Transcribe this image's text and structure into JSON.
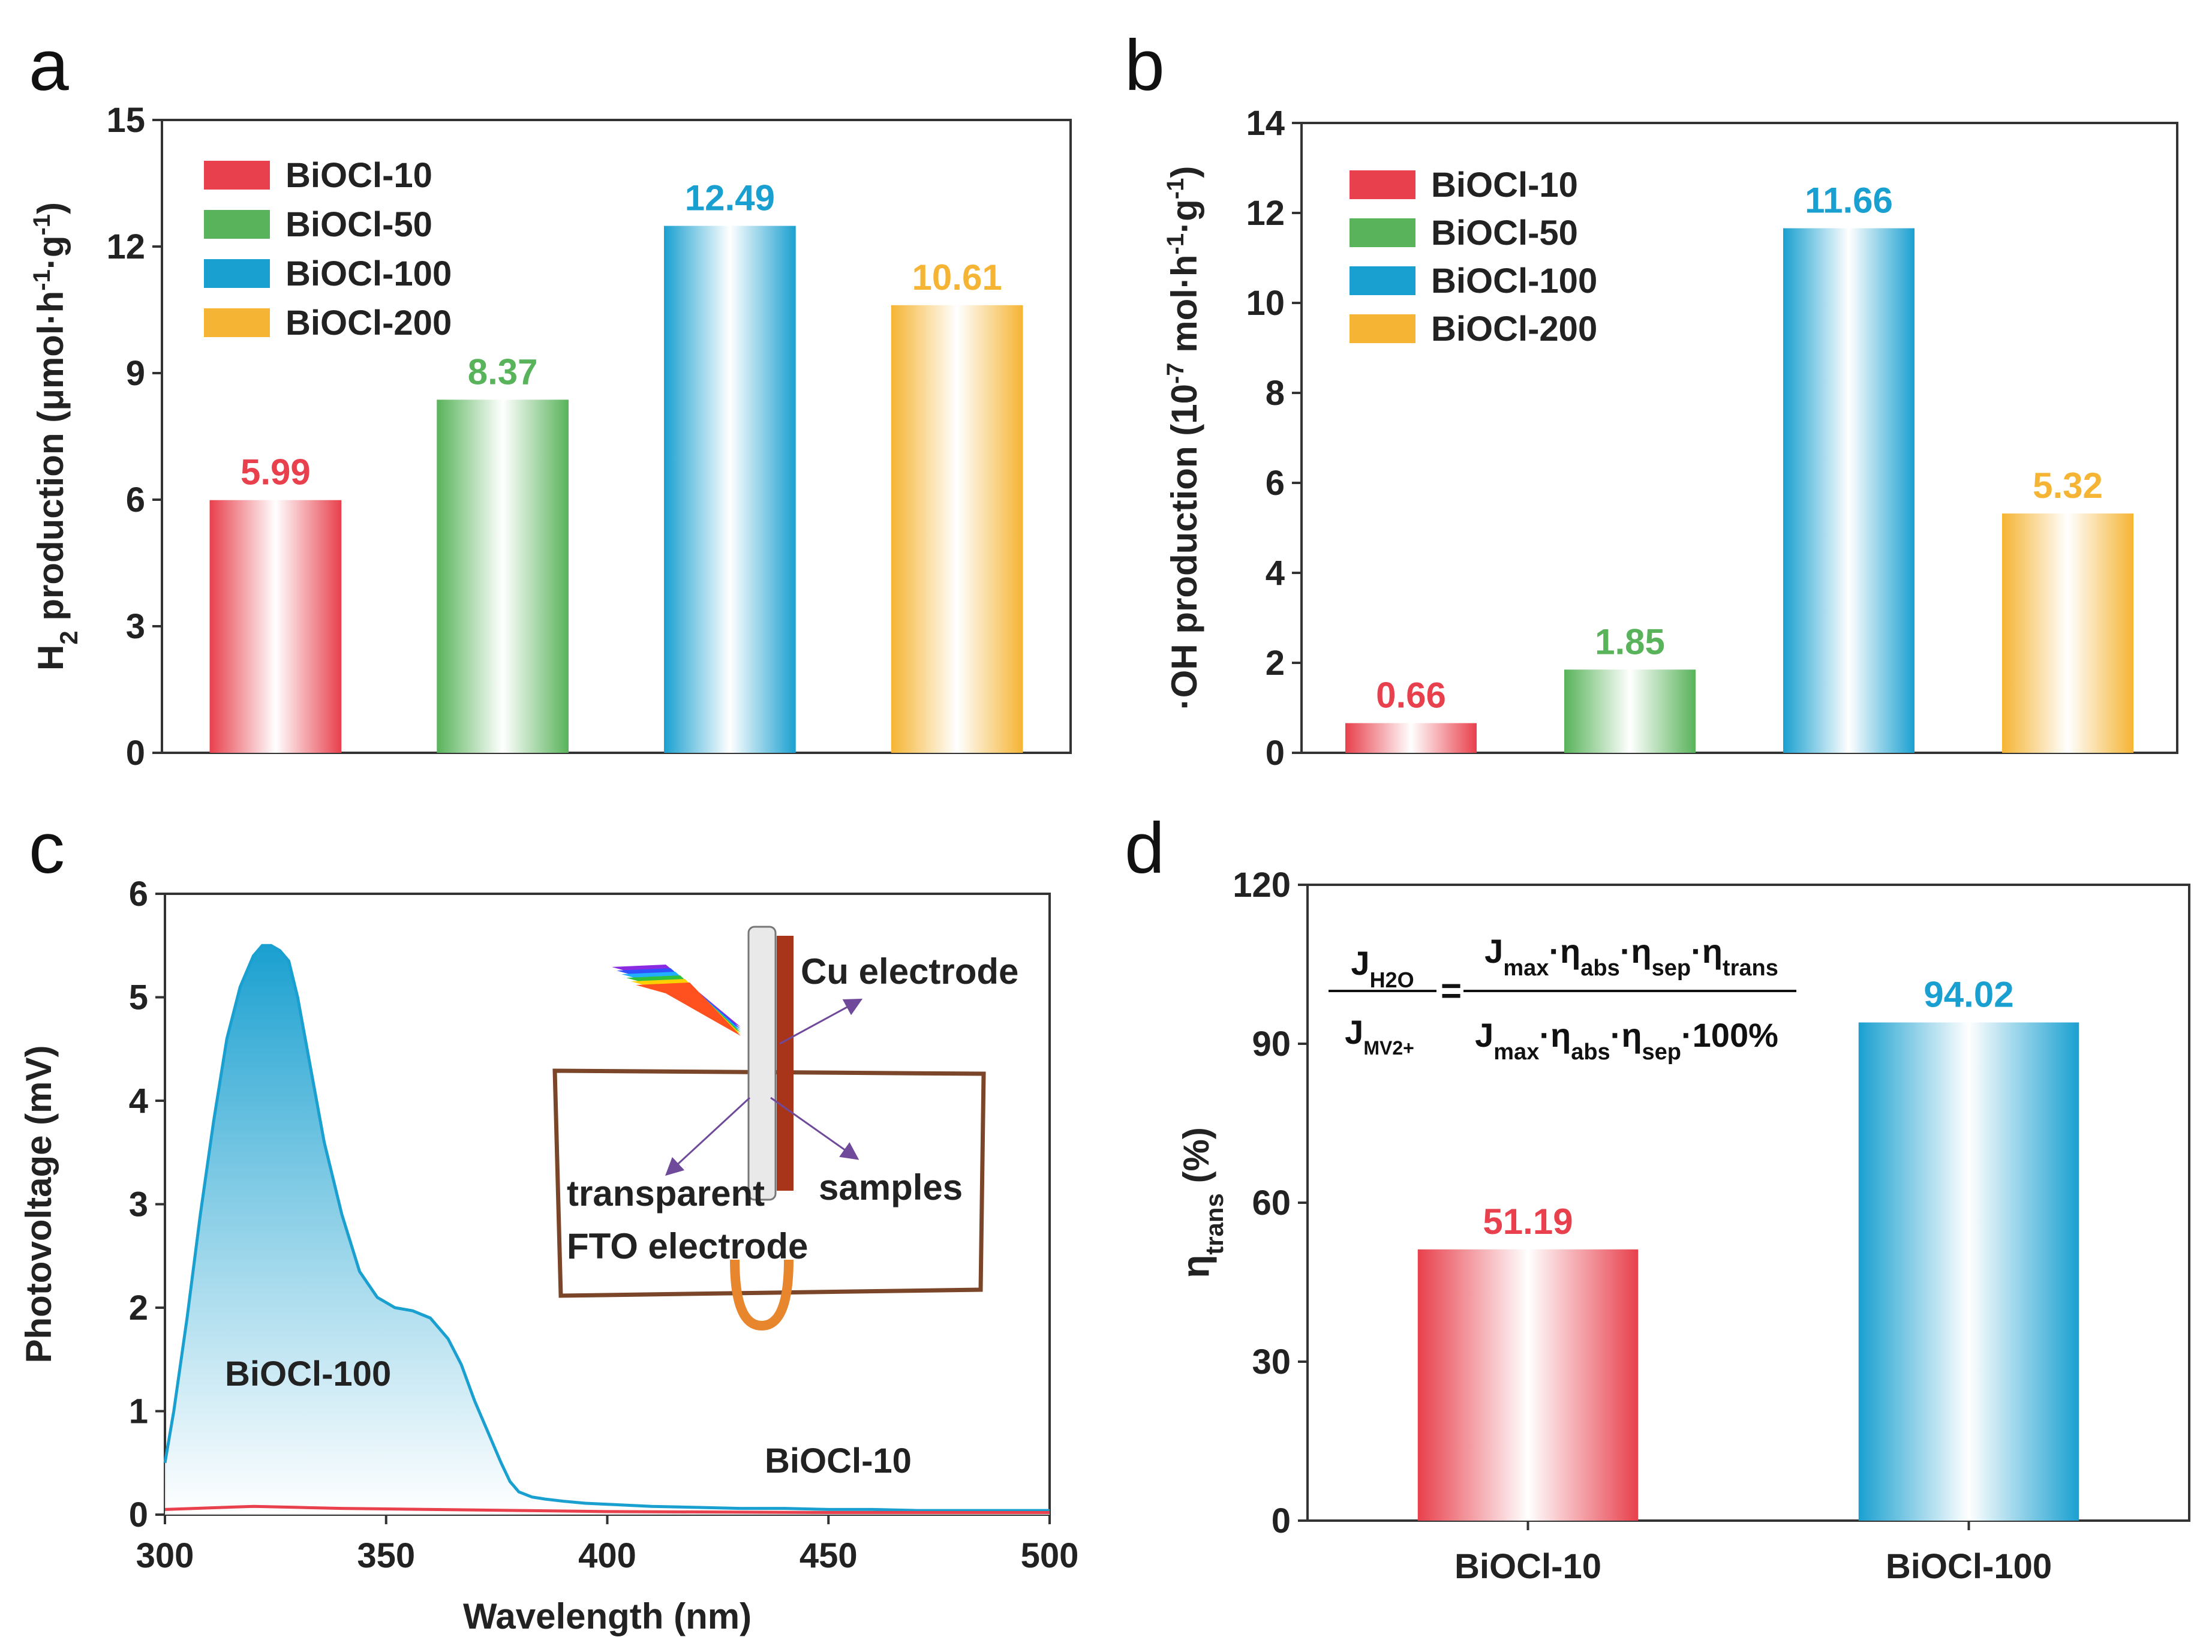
{
  "colors": {
    "red": "#e8404c",
    "green": "#58b35a",
    "blue": "#1aa0d0",
    "orange": "#f5b433",
    "axis": "#333333",
    "inset_frame": "#7a4528",
    "cu_electrode": "#a8341a",
    "arrow": "#6f4a9a"
  },
  "chart_data": [
    {
      "panel": "a",
      "type": "bar",
      "ylabel": "H2 production (μmol·h-1·g-1)",
      "ylabel_parts": {
        "main": "H",
        "sub": "2",
        "rest": " production (μmol·h",
        "sup1": "-1",
        "mid": "·g",
        "sup2": "-1",
        "end": ")"
      },
      "ylim": [
        0,
        15
      ],
      "yticks": [
        0,
        3,
        6,
        9,
        12,
        15
      ],
      "categories": [
        "BiOCl-10",
        "BiOCl-50",
        "BiOCl-100",
        "BiOCl-200"
      ],
      "values": [
        5.99,
        8.37,
        12.49,
        10.61
      ],
      "value_labels": [
        "5.99",
        "8.37",
        "12.49",
        "10.61"
      ],
      "colors": [
        "#e8404c",
        "#58b35a",
        "#1aa0d0",
        "#f5b433"
      ],
      "legend": [
        "BiOCl-10",
        "BiOCl-50",
        "BiOCl-100",
        "BiOCl-200"
      ],
      "legend_position": "top-left"
    },
    {
      "panel": "b",
      "type": "bar",
      "ylabel": "·OH production (10-7 mol·h-1·g-1)",
      "ylabel_parts": {
        "main": "·OH production (10",
        "sup0": "-7",
        "rest": " mol·h",
        "sup1": "-1",
        "mid": "·g",
        "sup2": "-1",
        "end": ")"
      },
      "ylim": [
        0,
        14
      ],
      "yticks": [
        0,
        2,
        4,
        6,
        8,
        10,
        12,
        14
      ],
      "categories": [
        "BiOCl-10",
        "BiOCl-50",
        "BiOCl-100",
        "BiOCl-200"
      ],
      "values": [
        0.66,
        1.85,
        11.66,
        5.32
      ],
      "value_labels": [
        "0.66",
        "1.85",
        "11.66",
        "5.32"
      ],
      "colors": [
        "#e8404c",
        "#58b35a",
        "#1aa0d0",
        "#f5b433"
      ],
      "legend": [
        "BiOCl-10",
        "BiOCl-50",
        "BiOCl-100",
        "BiOCl-200"
      ],
      "legend_position": "top-left"
    },
    {
      "panel": "c",
      "type": "area",
      "xlabel": "Wavelength (nm)",
      "ylabel": "Photovoltage (mV)",
      "xlim": [
        300,
        500
      ],
      "ylim": [
        0,
        6
      ],
      "xticks": [
        300,
        350,
        400,
        450,
        500
      ],
      "yticks": [
        0,
        1,
        2,
        3,
        4,
        5,
        6
      ],
      "series": [
        {
          "name": "BiOCl-100",
          "color": "#1aa0d0",
          "x": [
            300,
            302,
            305,
            308,
            311,
            314,
            317,
            320,
            322,
            324,
            326,
            328,
            330,
            333,
            336,
            340,
            344,
            348,
            352,
            356,
            360,
            364,
            367,
            370,
            373,
            376,
            378,
            380,
            383,
            386,
            390,
            395,
            400,
            410,
            420,
            430,
            440,
            450,
            460,
            470,
            480,
            490,
            500
          ],
          "y": [
            0.5,
            1.0,
            1.9,
            2.9,
            3.8,
            4.6,
            5.1,
            5.4,
            5.5,
            5.5,
            5.45,
            5.35,
            5.0,
            4.3,
            3.6,
            2.9,
            2.35,
            2.1,
            2.0,
            1.97,
            1.9,
            1.7,
            1.45,
            1.1,
            0.8,
            0.5,
            0.32,
            0.22,
            0.17,
            0.15,
            0.13,
            0.11,
            0.1,
            0.08,
            0.07,
            0.06,
            0.06,
            0.05,
            0.05,
            0.04,
            0.04,
            0.04,
            0.04
          ]
        },
        {
          "name": "BiOCl-10",
          "color": "#e8404c",
          "x": [
            300,
            320,
            330,
            340,
            360,
            380,
            400,
            450,
            500
          ],
          "y": [
            0.05,
            0.08,
            0.07,
            0.06,
            0.05,
            0.04,
            0.03,
            0.02,
            0.02
          ]
        }
      ],
      "annotations": {
        "curve_label_1": "BiOCl-100",
        "curve_label_2": "BiOCl-10"
      },
      "inset": {
        "cu_electrode": "Cu electrode",
        "transparent": "transparent",
        "fto": "FTO electrode",
        "samples": "samples"
      }
    },
    {
      "panel": "d",
      "type": "bar",
      "ylabel": "ηtrans (%)",
      "ylabel_parts": {
        "main": "η",
        "sub": "trans",
        "end": " (%)"
      },
      "ylim": [
        0,
        120
      ],
      "yticks": [
        0,
        30,
        60,
        90,
        120
      ],
      "categories": [
        "BiOCl-10",
        "BiOCl-100"
      ],
      "values": [
        51.19,
        94.02
      ],
      "value_labels": [
        "51.19",
        "94.02"
      ],
      "colors": [
        "#e8404c",
        "#1aa0d0"
      ],
      "equation": {
        "lhs_num": "J",
        "lhs_num_sub": "H2O",
        "lhs_den": "J",
        "lhs_den_sub": "MV2+",
        "equals": "=",
        "rhs_num": [
          "J",
          "max",
          "·η",
          "abs",
          "·η",
          "sep",
          "·η",
          "trans"
        ],
        "rhs_den": [
          "J",
          "max",
          "·η",
          "abs",
          "·η",
          "sep",
          "·100%"
        ]
      }
    }
  ],
  "panel_letters": [
    "a",
    "b",
    "c",
    "d"
  ]
}
